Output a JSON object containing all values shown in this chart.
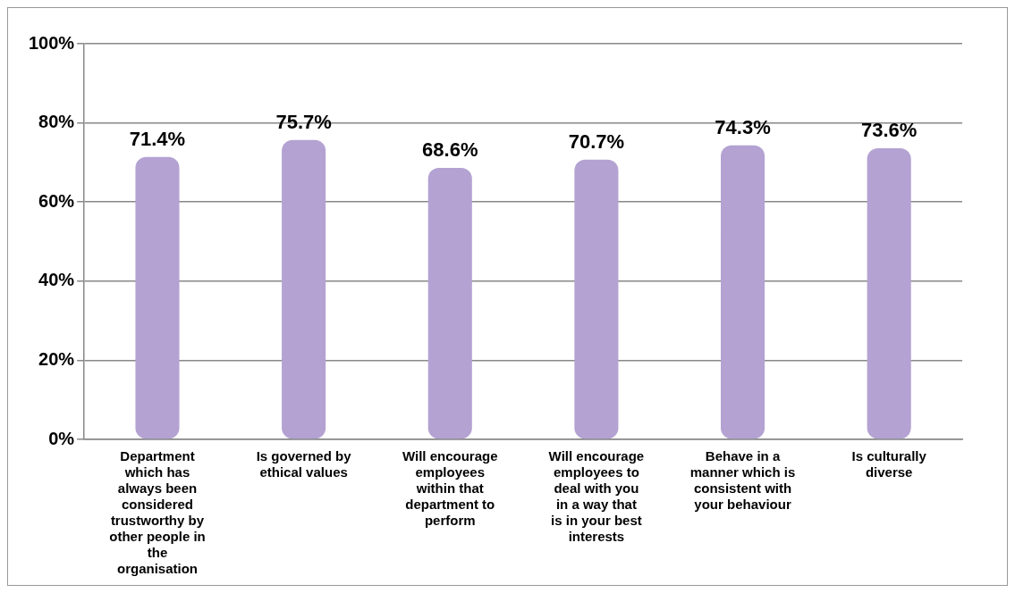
{
  "chart_data": {
    "type": "bar",
    "categories": [
      "Department which has always been considered trustworthy by other people in the organisation",
      "Is governed by ethical values",
      "Will encourage employees within that department to perform",
      "Will encourage employees to deal with you in a way that is in your best interests",
      "Behave in a manner which is consistent with your behaviour",
      "Is culturally diverse"
    ],
    "values": [
      71.4,
      75.7,
      68.6,
      70.7,
      74.3,
      73.6
    ],
    "value_labels": [
      "71.4%",
      "75.7%",
      "68.6%",
      "70.7%",
      "74.3%",
      "73.6%"
    ],
    "color": "#b4a2d2",
    "ylim": [
      0,
      100
    ],
    "yticks": [
      {
        "value": 0,
        "label": "0%"
      },
      {
        "value": 20,
        "label": "20%"
      },
      {
        "value": 40,
        "label": "40%"
      },
      {
        "value": 60,
        "label": "60%"
      },
      {
        "value": 80,
        "label": "80%"
      },
      {
        "value": 100,
        "label": "100%"
      }
    ],
    "grid": "y",
    "legend": false
  }
}
